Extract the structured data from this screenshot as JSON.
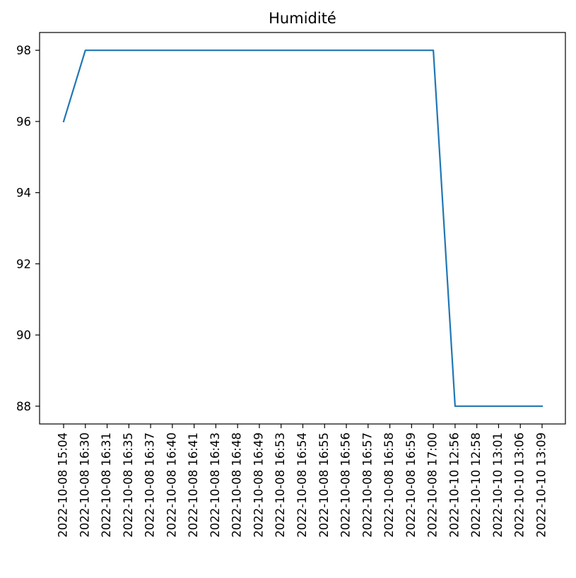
{
  "chart_data": {
    "type": "line",
    "title": "Humidité",
    "xlabel": "",
    "ylabel": "",
    "categories": [
      "2022-10-08 15:04",
      "2022-10-08 16:30",
      "2022-10-08 16:31",
      "2022-10-08 16:35",
      "2022-10-08 16:37",
      "2022-10-08 16:40",
      "2022-10-08 16:41",
      "2022-10-08 16:43",
      "2022-10-08 16:48",
      "2022-10-08 16:49",
      "2022-10-08 16:53",
      "2022-10-08 16:54",
      "2022-10-08 16:55",
      "2022-10-08 16:56",
      "2022-10-08 16:57",
      "2022-10-08 16:58",
      "2022-10-08 16:59",
      "2022-10-08 17:00",
      "2022-10-10 12:56",
      "2022-10-10 12:58",
      "2022-10-10 13:01",
      "2022-10-10 13:06",
      "2022-10-10 13:09"
    ],
    "series": [
      {
        "values": [
          96,
          98,
          98,
          98,
          98,
          98,
          98,
          98,
          98,
          98,
          98,
          98,
          98,
          98,
          98,
          98,
          98,
          98,
          88,
          88,
          88,
          88,
          88
        ],
        "color": "#1f77b4"
      }
    ],
    "yticks": [
      88,
      90,
      92,
      94,
      96,
      98
    ],
    "ylim": [
      87.5,
      98.5
    ],
    "grid": false,
    "legend": "none"
  }
}
